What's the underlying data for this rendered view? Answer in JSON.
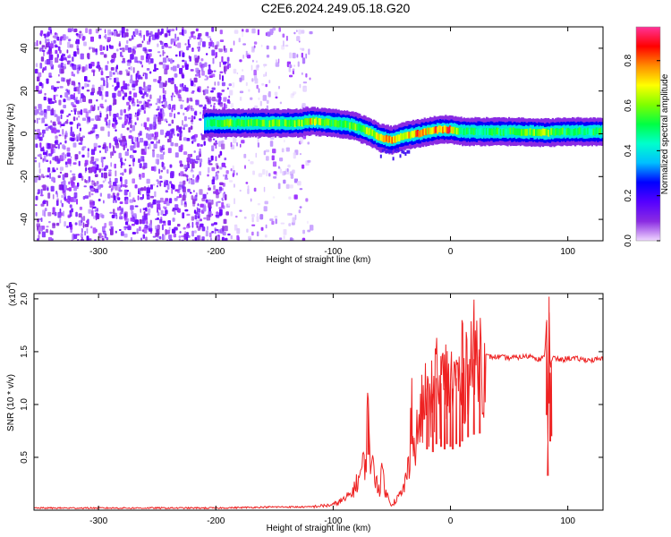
{
  "title": "C2E6.2024.249.05.18.G20",
  "chart_data": [
    {
      "type": "heatmap",
      "xlabel": "Height of straight line (km)",
      "ylabel": "Frequency (Hz)",
      "xlim": [
        -355,
        130
      ],
      "ylim": [
        -50,
        50
      ],
      "x_ticks": [
        -300,
        -200,
        -100,
        0,
        100
      ],
      "y_ticks": [
        40,
        20,
        0,
        -20,
        -40
      ],
      "colorbar": {
        "label": "Normalized spectral amplitude",
        "range": [
          0,
          0.95
        ],
        "ticks": [
          "0.0",
          "0.2",
          "0.4",
          "0.6",
          "0.8"
        ],
        "tick_values": [
          0.0,
          0.2,
          0.4,
          0.6,
          0.8
        ],
        "colors": [
          "#f0d8ff",
          "#8a2be2",
          "#5500ff",
          "#0000ff",
          "#00bfff",
          "#00ffcc",
          "#00ff44",
          "#7fff00",
          "#ffff00",
          "#ff8c00",
          "#ff0000",
          "#ff3399"
        ]
      },
      "noise_region_x": [
        -355,
        -120
      ],
      "ridge": {
        "x": [
          -210,
          -190,
          -170,
          -150,
          -130,
          -120,
          -100,
          -85,
          -70,
          -60,
          -50,
          -40,
          -30,
          -20,
          -10,
          0,
          10,
          30,
          60,
          80,
          100,
          130
        ],
        "freq_hz": [
          5,
          5,
          5,
          5,
          5,
          6,
          5,
          4,
          1,
          -2,
          -3,
          -1,
          0,
          1,
          2,
          2,
          1,
          1,
          1,
          0.5,
          1,
          1
        ],
        "amplitude": [
          0.4,
          0.6,
          0.55,
          0.6,
          0.6,
          0.75,
          0.55,
          0.6,
          0.65,
          0.75,
          0.8,
          0.7,
          0.85,
          0.8,
          0.9,
          0.85,
          0.5,
          0.5,
          0.55,
          0.65,
          0.5,
          0.5
        ]
      }
    },
    {
      "type": "line",
      "xlabel": "Height of straight line (km)",
      "ylabel": "SNR (10 * v/v)",
      "y_multiplier": "(x10",
      "y_multiplier_exp": "4",
      "xlim": [
        -355,
        130
      ],
      "ylim": [
        0,
        2.05
      ],
      "x_ticks": [
        -300,
        -200,
        -100,
        0,
        100
      ],
      "y_ticks": [
        0.5,
        1.0,
        1.5,
        2.0
      ],
      "y_tick_labels": [
        "0.5",
        "1.0",
        "1.5",
        "2.0"
      ],
      "color": "#ee2222",
      "series": [
        {
          "x": [
            -355,
            -300,
            -250,
            -200,
            -150,
            -120,
            -100,
            -95,
            -90,
            -85,
            -80,
            -75,
            -72,
            -70,
            -68,
            -65,
            -62,
            -60,
            -58,
            -55,
            -52,
            -50,
            -48,
            -45,
            -42,
            -40,
            -38,
            -35,
            -33,
            -32,
            -30,
            -28,
            -25,
            -22,
            -20,
            -18,
            -15,
            -12,
            -10,
            -8,
            -5,
            -3,
            0,
            2,
            5,
            8,
            10,
            15,
            20,
            25,
            30,
            35,
            40,
            50,
            60,
            70,
            75,
            80,
            82,
            83,
            84,
            85,
            86,
            88,
            90,
            95,
            100,
            110,
            120,
            130
          ],
          "y": [
            0.02,
            0.02,
            0.02,
            0.02,
            0.03,
            0.03,
            0.05,
            0.08,
            0.1,
            0.15,
            0.25,
            0.4,
            0.5,
            1.05,
            0.45,
            0.35,
            0.25,
            0.2,
            0.4,
            0.15,
            0.1,
            0.05,
            0.08,
            0.12,
            0.15,
            0.2,
            0.3,
            0.45,
            1.25,
            0.5,
            0.6,
            0.75,
            0.9,
            1.0,
            1.15,
            0.85,
            1.1,
            1.25,
            1.0,
            1.2,
            1.15,
            1.25,
            1.2,
            1.15,
            1.25,
            1.2,
            1.3,
            1.38,
            1.43,
            1.45,
            1.46,
            1.45,
            1.45,
            1.44,
            1.45,
            1.46,
            1.43,
            1.44,
            1.8,
            0.65,
            2.02,
            1.3,
            1.4,
            1.45,
            1.43,
            1.42,
            1.44,
            1.43,
            1.42,
            1.43
          ]
        }
      ]
    }
  ]
}
